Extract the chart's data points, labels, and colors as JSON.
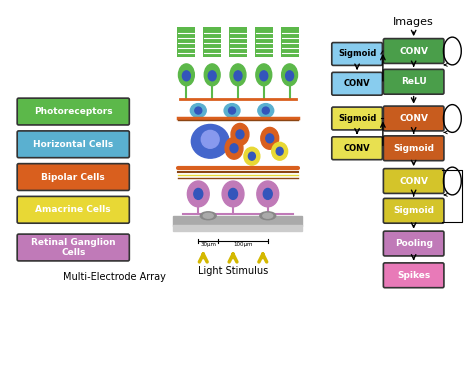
{
  "background_color": "#ffffff",
  "legend_items": [
    {
      "label": "Photoreceptors",
      "color": "#5cb84a",
      "text_color": "white"
    },
    {
      "label": "Horizontal Cells",
      "color": "#5ab0d0",
      "text_color": "white"
    },
    {
      "label": "Bipolar Cells",
      "color": "#d95f1e",
      "text_color": "white"
    },
    {
      "label": "Amacrine Cells",
      "color": "#e8d835",
      "text_color": "white"
    },
    {
      "label": "Retinal Ganglion\nCells",
      "color": "#c07ab8",
      "text_color": "white"
    }
  ],
  "multi_electrode_label": "Multi-Electrode Array",
  "light_stimulus_label": "Light Stimulus",
  "images_label": "Images",
  "right_col_boxes": [
    {
      "label": "CONV",
      "color": "#4a9e4a",
      "text_color": "white"
    },
    {
      "label": "ReLU",
      "color": "#4a9e4a",
      "text_color": "white"
    },
    {
      "label": "CONV",
      "color": "#c85c1e",
      "text_color": "white"
    },
    {
      "label": "Sigmoid",
      "color": "#c85c1e",
      "text_color": "white"
    },
    {
      "label": "CONV",
      "color": "#d4c42a",
      "text_color": "white"
    },
    {
      "label": "Sigmoid",
      "color": "#d4c42a",
      "text_color": "white"
    },
    {
      "label": "Pooling",
      "color": "#c07ab8",
      "text_color": "white"
    },
    {
      "label": "Spikes",
      "color": "#e87ab8",
      "text_color": "white"
    }
  ],
  "left_col_boxes": [
    {
      "label": "Sigmoid",
      "color": "#88ccee",
      "text_color": "black"
    },
    {
      "label": "CONV",
      "color": "#88ccee",
      "text_color": "black"
    },
    {
      "label": "Sigmoid",
      "color": "#e8e050",
      "text_color": "black"
    },
    {
      "label": "CONV",
      "color": "#e8e050",
      "text_color": "black"
    }
  ],
  "green": "#5cb84a",
  "blue_h": "#5ab0d0",
  "orange": "#d95f1e",
  "yellow": "#e8d835",
  "purple": "#c07ab8",
  "dark_nucleus": "#3355bb",
  "brown": "#8B4513"
}
